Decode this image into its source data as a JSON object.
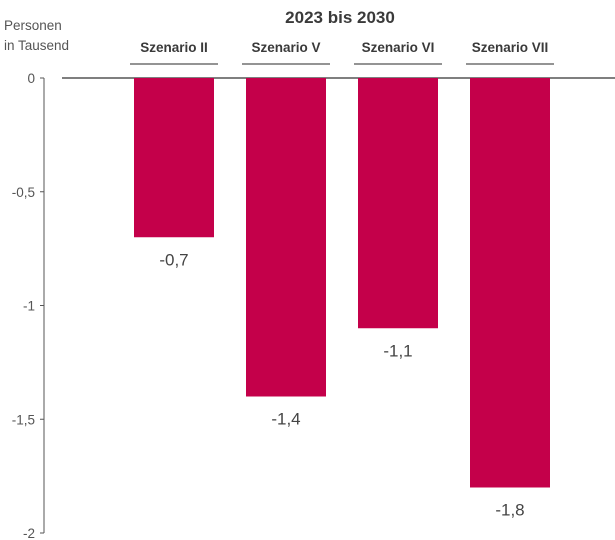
{
  "chart_data": {
    "type": "bar",
    "title": "2023 bis 2030",
    "ylabel_line1": "Personen",
    "ylabel_line2": "in Tausend",
    "categories": [
      "Szenario II",
      "Szenario V",
      "Szenario VI",
      "Szenario VII"
    ],
    "values": [
      -0.7,
      -1.4,
      -1.1,
      -1.8
    ],
    "data_labels": [
      "-0,7",
      "-1,4",
      "-1,1",
      "-1,8"
    ],
    "yticks": [
      0,
      -0.5,
      -1,
      -1.5,
      -2
    ],
    "ytick_labels": [
      "0",
      "-0,5",
      "-1",
      "-1,5",
      "-2"
    ],
    "ylim": [
      -2,
      0
    ],
    "grid": false,
    "legend": "none",
    "bar_color": "#c4004a"
  }
}
